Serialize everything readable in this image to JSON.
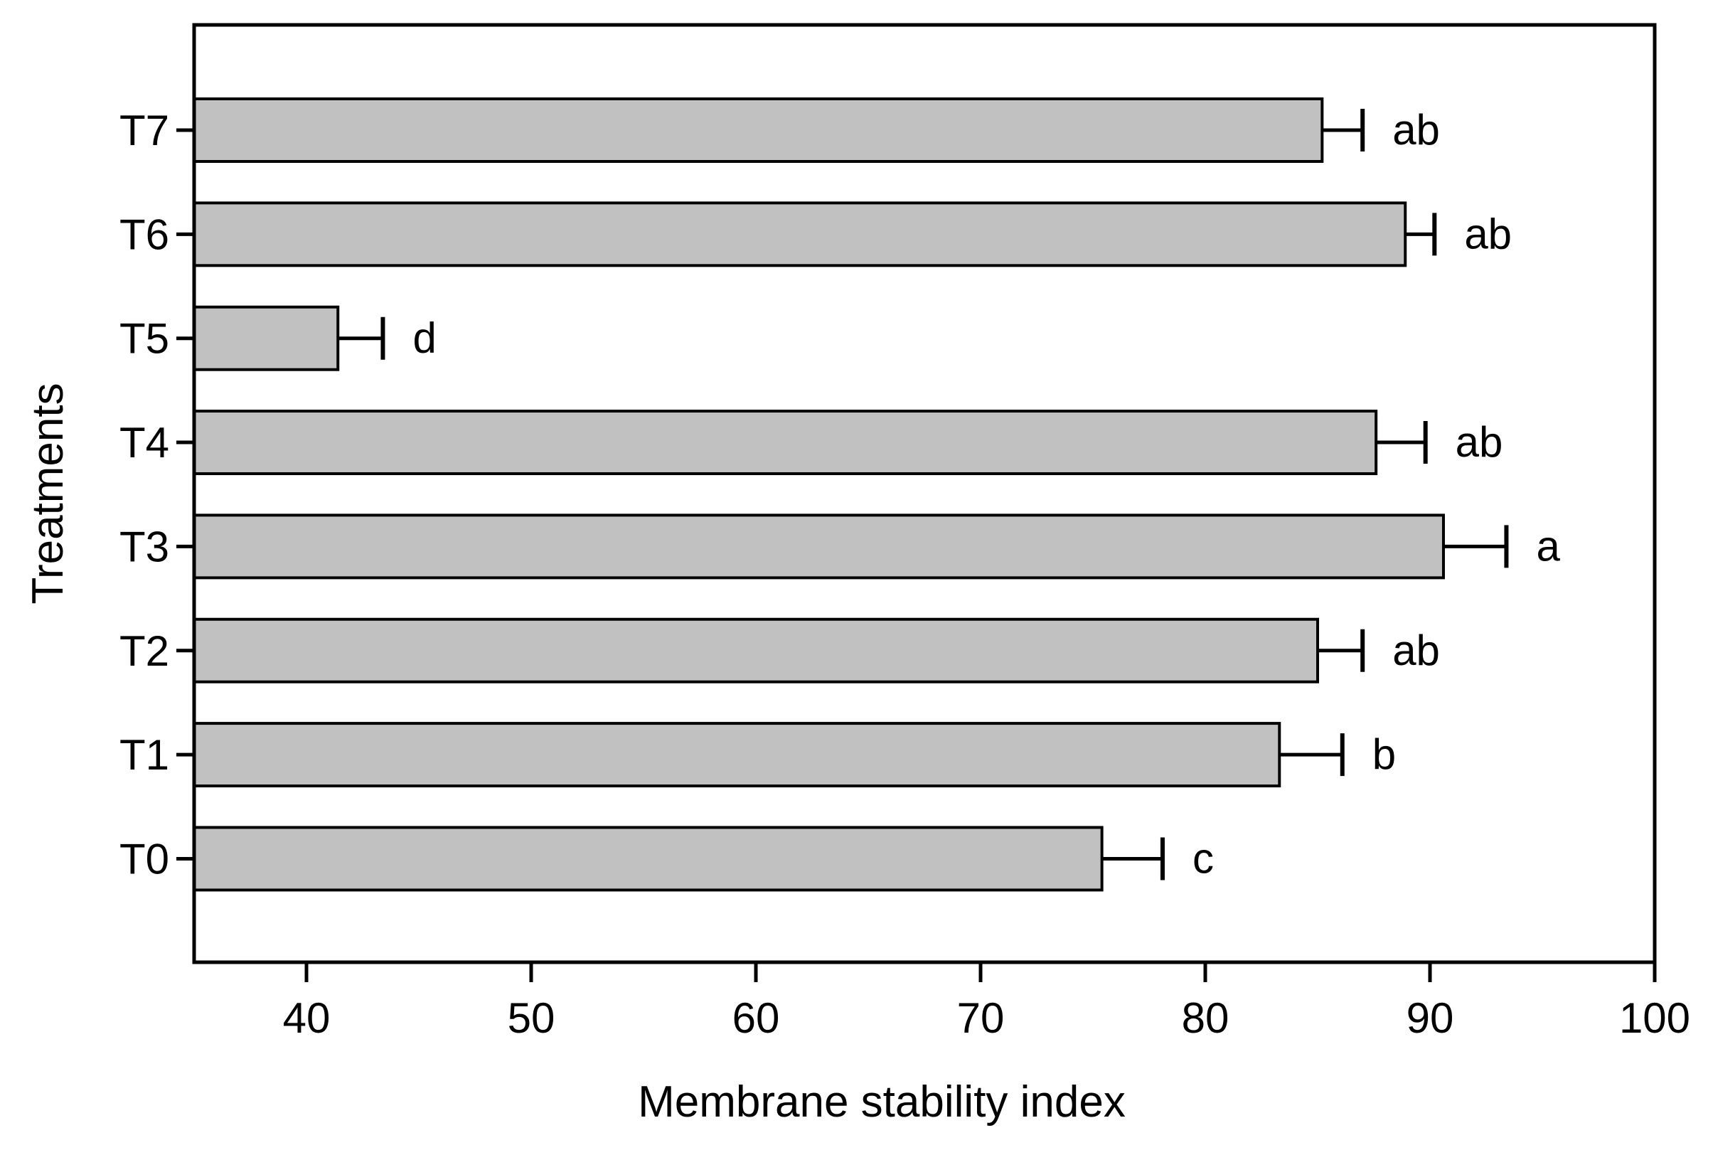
{
  "chart_data": {
    "type": "bar",
    "orientation": "horizontal",
    "xlabel": "Membrane stability index",
    "ylabel": "Treatments",
    "xlim": [
      35,
      100
    ],
    "x_ticks": [
      40,
      50,
      60,
      70,
      80,
      90,
      100
    ],
    "categories": [
      "T7",
      "T6",
      "T5",
      "T4",
      "T3",
      "T2",
      "T1",
      "T0"
    ],
    "values": [
      85.2,
      88.9,
      41.4,
      87.6,
      90.6,
      85.0,
      83.3,
      75.4
    ],
    "error_upper": [
      1.8,
      1.3,
      2.0,
      2.2,
      2.8,
      2.0,
      2.8,
      2.7
    ],
    "significance_letters": [
      "ab",
      "ab",
      "d",
      "ab",
      "a",
      "ab",
      "b",
      "c"
    ],
    "grid": false,
    "legend": false,
    "colors": {
      "bar_fill": "#c1c1c1",
      "bar_stroke": "#000000",
      "axis": "#000000",
      "background": "#ffffff"
    }
  }
}
